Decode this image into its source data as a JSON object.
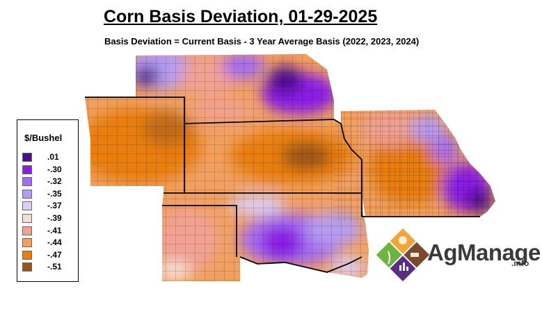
{
  "title": "Corn Basis Deviation, 01-29-2025",
  "subtitle": "Basis Deviation = Current Basis - 3 Year Average Basis (2022, 2023, 2024)",
  "legend": {
    "title": "$/Bushel",
    "items": [
      {
        "label": ".01",
        "color": "#4b0f8e"
      },
      {
        "label": "-.30",
        "color": "#8a1ee6"
      },
      {
        "label": "-.32",
        "color": "#a56cf0"
      },
      {
        "label": "-.35",
        "color": "#b59cf2"
      },
      {
        "label": "-.37",
        "color": "#dccdf7"
      },
      {
        "label": "-.39",
        "color": "#f6ddd2"
      },
      {
        "label": "-.41",
        "color": "#f2a192"
      },
      {
        "label": "-.44",
        "color": "#f2a060"
      },
      {
        "label": "-.47",
        "color": "#e97e10"
      },
      {
        "label": "-.51",
        "color": "#9a5413"
      }
    ]
  },
  "logo": {
    "text": "AgManager",
    "suffix": ".info",
    "colors": {
      "orange": "#f2a33a",
      "green": "#6cb33f",
      "brown": "#7a4a2a",
      "purple": "#5b2c83"
    }
  }
}
